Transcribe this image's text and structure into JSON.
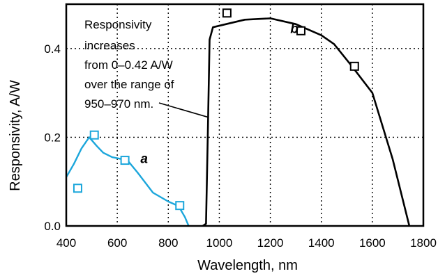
{
  "chart_data": {
    "type": "line",
    "xlabel": "Wavelength, nm",
    "ylabel": "Responsivity, A/W",
    "xlim": [
      400,
      1800
    ],
    "ylim": [
      0,
      0.5
    ],
    "x_ticks": [
      "400",
      "600",
      "800",
      "1000",
      "1200",
      "1400",
      "1600",
      "1800"
    ],
    "y_ticks": [
      "0.0",
      "0.2",
      "0.4"
    ],
    "grid": "dotted",
    "annotation": {
      "lines": [
        "Responsivity",
        "increases",
        "from 0–0.42 A/W",
        "over the range of",
        "950–970 nm."
      ]
    },
    "series": [
      {
        "name": "a",
        "color": "#1BA6DB",
        "curve": [
          [
            400,
            0.11
          ],
          [
            430,
            0.14
          ],
          [
            460,
            0.175
          ],
          [
            490,
            0.2
          ],
          [
            520,
            0.18
          ],
          [
            545,
            0.165
          ],
          [
            580,
            0.155
          ],
          [
            640,
            0.148
          ],
          [
            680,
            0.12
          ],
          [
            740,
            0.075
          ],
          [
            800,
            0.055
          ],
          [
            840,
            0.045
          ],
          [
            865,
            0.02
          ],
          [
            880,
            0.0
          ]
        ],
        "points": [
          [
            445,
            0.085
          ],
          [
            510,
            0.205
          ],
          [
            630,
            0.148
          ],
          [
            845,
            0.046
          ]
        ]
      },
      {
        "name": "b",
        "color": "#000000",
        "curve": [
          [
            935,
            0.0
          ],
          [
            948,
            0.005
          ],
          [
            955,
            0.21
          ],
          [
            962,
            0.42
          ],
          [
            975,
            0.448
          ],
          [
            1100,
            0.465
          ],
          [
            1200,
            0.468
          ],
          [
            1300,
            0.455
          ],
          [
            1400,
            0.43
          ],
          [
            1450,
            0.41
          ],
          [
            1520,
            0.36
          ],
          [
            1600,
            0.3
          ],
          [
            1680,
            0.15
          ],
          [
            1745,
            0.0
          ]
        ],
        "points": [
          [
            1030,
            0.48
          ],
          [
            1320,
            0.44
          ],
          [
            1530,
            0.36
          ]
        ]
      }
    ]
  }
}
